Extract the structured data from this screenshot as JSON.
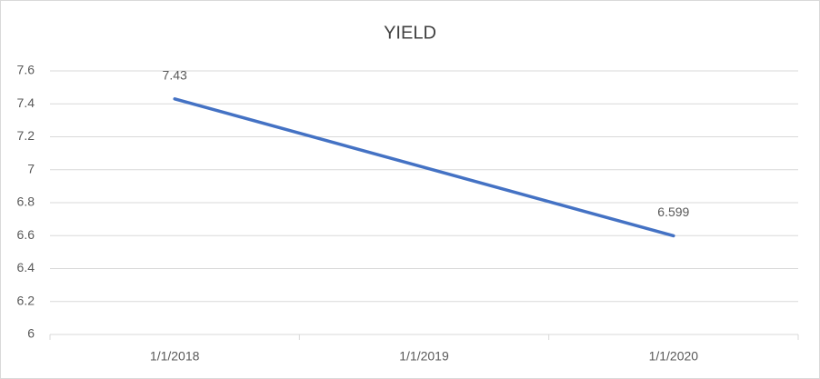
{
  "chart_data": {
    "type": "line",
    "title": "YIELD",
    "categories": [
      "1/1/2018",
      "1/1/2019",
      "1/1/2020"
    ],
    "series": [
      {
        "name": "YIELD",
        "color": "#4472c4",
        "values": [
          7.43,
          null,
          6.599
        ]
      }
    ],
    "connect_gaps": true,
    "data_labels": true,
    "ylim": [
      6,
      7.6
    ],
    "yticks": [
      6,
      6.2,
      6.4,
      6.6,
      6.8,
      7,
      7.2,
      7.4,
      7.6
    ],
    "grid": true
  }
}
